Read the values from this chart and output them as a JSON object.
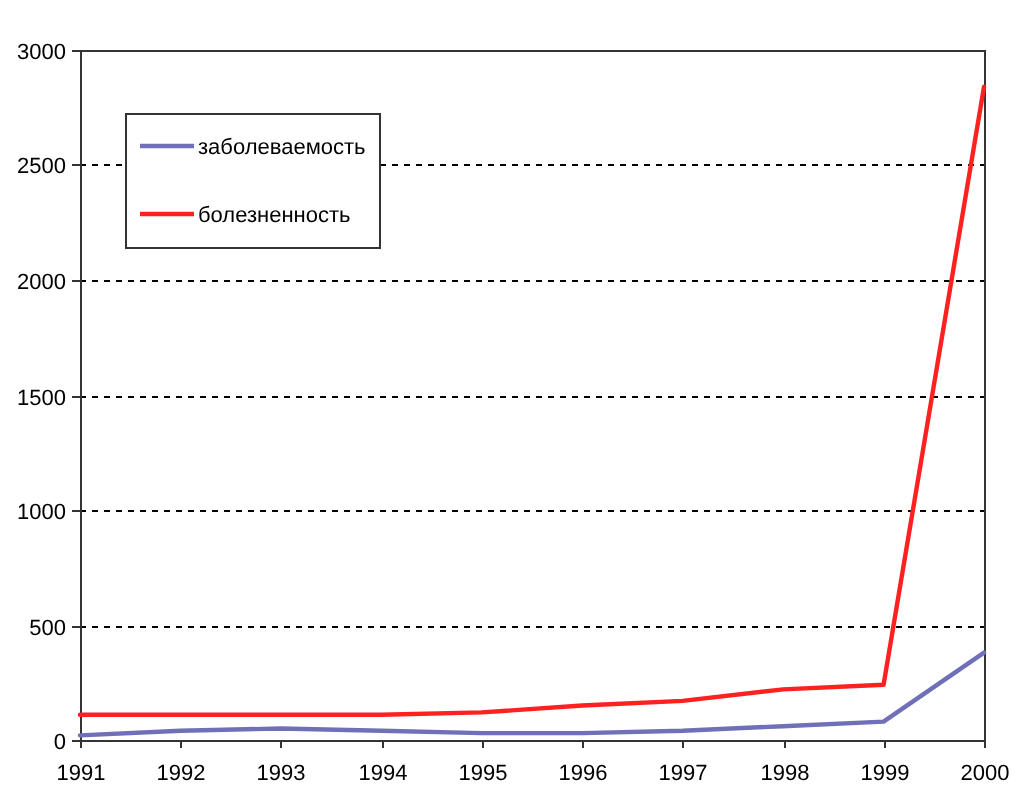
{
  "chart_data": {
    "type": "line",
    "x": [
      1991,
      1992,
      1993,
      1994,
      1995,
      1996,
      1997,
      1998,
      1999,
      2000
    ],
    "series": [
      {
        "name": "заболеваемость",
        "color": "#7070b8",
        "values": [
          20,
          40,
          50,
          40,
          30,
          30,
          40,
          60,
          80,
          380
        ]
      },
      {
        "name": "болезненность",
        "color": "#ff2020",
        "values": [
          110,
          110,
          110,
          110,
          120,
          150,
          170,
          220,
          240,
          2840
        ]
      }
    ],
    "xlim": [
      1991,
      2000
    ],
    "xticks": [
      1991,
      1992,
      1993,
      1994,
      1995,
      1996,
      1997,
      1998,
      1999,
      2000
    ],
    "ylim": [
      0,
      3000
    ],
    "yticks": [
      0,
      500,
      1000,
      1500,
      2000,
      2500,
      3000
    ],
    "grid": "y",
    "legend": "top left",
    "marker": "none",
    "line_style": "solid"
  }
}
